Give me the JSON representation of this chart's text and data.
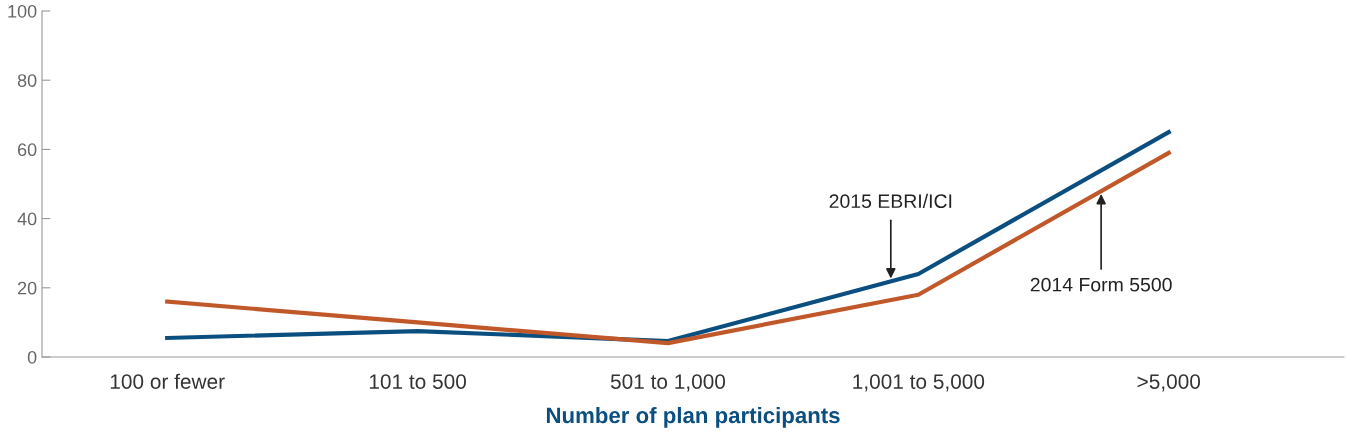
{
  "chart_data": {
    "type": "line",
    "xlabel": "Number of plan participants",
    "categories": [
      "100 or fewer",
      "101 to 500",
      "501 to 1,000",
      "1,001 to 5,000",
      ">5,000"
    ],
    "series": [
      {
        "name": "2015 EBRI/ICI",
        "color": "#0b4f80",
        "values": [
          5.5,
          7.5,
          4.6,
          24,
          65
        ]
      },
      {
        "name": "2014 Form 5500",
        "color": "#c0582a",
        "values": [
          16,
          10,
          4,
          18,
          59
        ]
      }
    ],
    "ylim": [
      0,
      100
    ],
    "yticks": [
      0,
      20,
      40,
      60,
      80,
      100
    ],
    "grid": false,
    "legend": false,
    "marker": "none",
    "line_style": "solid"
  }
}
